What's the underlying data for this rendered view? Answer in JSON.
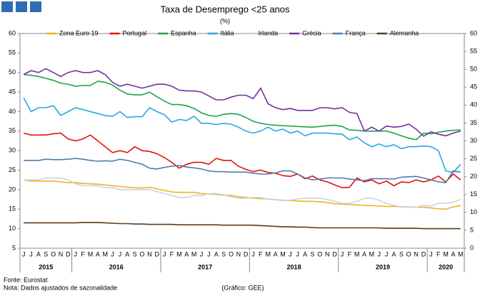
{
  "chart_data": {
    "type": "line",
    "title": "Taxa de Desemprego <25 anos",
    "subtitle": "(%)",
    "categories": [
      "J",
      "J",
      "A",
      "S",
      "O",
      "N",
      "D",
      "J",
      "F",
      "M",
      "A",
      "M",
      "J",
      "J",
      "A",
      "S",
      "O",
      "N",
      "D",
      "J",
      "F",
      "M",
      "A",
      "M",
      "J",
      "J",
      "A",
      "S",
      "O",
      "N",
      "D",
      "J",
      "F",
      "M",
      "A",
      "M",
      "J",
      "J",
      "A",
      "S",
      "O",
      "N",
      "D",
      "J",
      "F",
      "M",
      "A",
      "M",
      "J",
      "J",
      "A",
      "S",
      "O",
      "N",
      "D",
      "J",
      "F",
      "M",
      "A",
      "M"
    ],
    "year_labels": [
      "2015",
      "2016",
      "2017",
      "2018",
      "2019",
      "2020"
    ],
    "ylim": [
      5,
      60
    ],
    "yticks": [
      5,
      10,
      15,
      20,
      25,
      30,
      35,
      40,
      45,
      50,
      55,
      60
    ],
    "y2lim": [
      0,
      60
    ],
    "y2ticks": [
      0,
      5,
      10,
      15,
      20,
      25,
      30,
      35,
      40,
      45,
      50,
      55,
      60
    ],
    "series": [
      {
        "name": "Zona Euro 19",
        "color": "#f0b323",
        "values": [
          22.5,
          22.2,
          22.2,
          22.2,
          22.2,
          22,
          21.8,
          21.8,
          21.6,
          21.5,
          21.4,
          21.2,
          21,
          20.8,
          20.6,
          20.5,
          20.4,
          20.6,
          20.2,
          19.8,
          19.4,
          19.3,
          19.3,
          19.3,
          19,
          18.9,
          18.8,
          18.6,
          18.5,
          18.2,
          18,
          17.8,
          17.7,
          17.6,
          17.4,
          17.3,
          17.2,
          17.1,
          17,
          17,
          16.9,
          16.7,
          16.4,
          16.3,
          16.2,
          16.1,
          16,
          15.9,
          15.8,
          15.7,
          15.7,
          15.6,
          15.6,
          15.5,
          15.5,
          15.3,
          15.1,
          15,
          15.6,
          15.9
        ]
      },
      {
        "name": "Portugal",
        "color": "#e3120b",
        "values": [
          34.5,
          34,
          34,
          34,
          34.3,
          34.5,
          33,
          32.5,
          33,
          34,
          32.5,
          31,
          29.5,
          30,
          29.5,
          31,
          30,
          29.8,
          29.2,
          28.2,
          27,
          25.5,
          26.5,
          27,
          27,
          26.5,
          28,
          27.5,
          27.5,
          26,
          25.2,
          24.6,
          25,
          24.4,
          24.2,
          23.6,
          23.4,
          24,
          22.8,
          23.5,
          22.5,
          22,
          21.2,
          20.5,
          20.6,
          23,
          22,
          22.5,
          21.5,
          22.2,
          21,
          22,
          21.8,
          22.5,
          22,
          22.5,
          23.5,
          22,
          24,
          22.5
        ]
      },
      {
        "name": "Espanha",
        "color": "#1fa34a",
        "values": [
          49.5,
          49.3,
          49,
          48.5,
          48,
          47.3,
          47,
          46.5,
          46.7,
          46.7,
          47.8,
          47.5,
          46.8,
          45.5,
          44.5,
          44.3,
          44.3,
          45,
          43.8,
          42.7,
          41.8,
          41.8,
          41.5,
          40.8,
          39.7,
          39,
          38.8,
          39.3,
          39.5,
          39.3,
          38.5,
          37.5,
          37,
          36.7,
          36.5,
          36.4,
          36.3,
          36.2,
          36.1,
          36,
          36.2,
          36.4,
          36.5,
          36.2,
          35.3,
          35.2,
          35,
          35,
          35,
          35,
          34.5,
          33.8,
          33.2,
          32.8,
          34.5,
          34.3,
          34.7,
          35,
          35.2,
          35.3
        ]
      },
      {
        "name": "Itália",
        "color": "#27a8e0",
        "values": [
          43.5,
          40,
          41,
          41,
          41.5,
          39,
          40,
          41,
          40.5,
          40,
          39.5,
          39,
          38.8,
          40,
          38.5,
          38.7,
          38.7,
          41,
          40,
          39.2,
          37.3,
          38,
          37.7,
          38.8,
          37,
          37,
          36.7,
          37,
          36.8,
          36,
          35,
          34.5,
          35,
          36,
          35,
          35.5,
          34.5,
          35,
          33.8,
          34.5,
          34.5,
          34.5,
          34.3,
          34.2,
          32.8,
          33.5,
          32,
          31,
          31.7,
          31,
          31.5,
          30.5,
          31,
          31,
          31.2,
          31,
          30,
          24.8,
          24.4,
          26.5
        ]
      },
      {
        "name": "Irlanda",
        "color": "#c9d3e0",
        "values": [
          22.5,
          22.5,
          22.5,
          23,
          23,
          23,
          22.5,
          21.5,
          21,
          21,
          21,
          20.5,
          20.5,
          20,
          20,
          20,
          20,
          20,
          19.5,
          19,
          18.5,
          18,
          18,
          18.5,
          18.5,
          19,
          19,
          18.7,
          18.2,
          17.8,
          17.8,
          18,
          18,
          17.5,
          17.5,
          17.2,
          17.3,
          17.6,
          17.8,
          17.8,
          17.8,
          17.5,
          17,
          16.5,
          16.5,
          17,
          17.8,
          17.8,
          17.3,
          16.5,
          16,
          15.5,
          15.5,
          15.5,
          16,
          15.8,
          16.5,
          16.5,
          16.8,
          17.5
        ]
      },
      {
        "name": "Grécia",
        "color": "#7030a0",
        "values": [
          49.5,
          50.5,
          50,
          51,
          50,
          49,
          50,
          50.5,
          50,
          50,
          50.5,
          49.5,
          47.5,
          46.5,
          47,
          46.5,
          46,
          46.5,
          47,
          47,
          46.5,
          45.5,
          45.3,
          45.3,
          45,
          44,
          43,
          43,
          43.7,
          44.2,
          44.2,
          43.3,
          46,
          42,
          41,
          40.5,
          40.8,
          40.3,
          40.3,
          40.3,
          41,
          41,
          40.7,
          41,
          39.8,
          39.5,
          35,
          36,
          35,
          36.3,
          36,
          36.2,
          36.8,
          35.5,
          33.7,
          34.8,
          34.2,
          33.8,
          34.5,
          35
        ]
      },
      {
        "name": "França",
        "color": "#4f7bb0",
        "values": [
          27.5,
          27.5,
          27.5,
          27.8,
          27.7,
          27.7,
          27.8,
          28,
          27.8,
          27.5,
          27.3,
          27.4,
          27.3,
          27.8,
          27.5,
          27,
          26.5,
          25.5,
          25.3,
          25.7,
          26,
          26.2,
          25.8,
          25.6,
          25.3,
          24.8,
          24.6,
          24.6,
          24.5,
          24.5,
          24.5,
          24.2,
          24,
          24,
          24.3,
          24.8,
          24.8,
          24,
          23,
          22.5,
          22.7,
          23,
          23,
          23,
          22.7,
          22.5,
          22.3,
          22.8,
          22.8,
          22.8,
          22.7,
          23.2,
          23.3,
          23.4,
          23,
          22.5,
          22,
          21.8,
          24.8,
          24.5
        ]
      },
      {
        "name": "Alemanha",
        "color": "#5b3a1a",
        "values": [
          11.5,
          11.5,
          11.5,
          11.5,
          11.5,
          11.5,
          11.5,
          11.5,
          11.6,
          11.6,
          11.6,
          11.5,
          11.4,
          11.3,
          11.3,
          11.2,
          11.2,
          11.1,
          11.1,
          11.1,
          11.1,
          11,
          11,
          11,
          11,
          11,
          11,
          10.9,
          10.9,
          10.9,
          10.9,
          10.9,
          10.8,
          10.7,
          10.6,
          10.5,
          10.5,
          10.4,
          10.4,
          10.3,
          10.2,
          10.2,
          10.2,
          10.2,
          10.2,
          10.2,
          10.2,
          10.2,
          10.2,
          10.1,
          10.1,
          10.1,
          10.1,
          10.1,
          10,
          10,
          10,
          10,
          10,
          10
        ]
      }
    ],
    "source": "Fonte: Eurostat",
    "note": "Nota: Dados ajustados de sazonalidade",
    "credit": "(Gráfico: GEE)"
  }
}
